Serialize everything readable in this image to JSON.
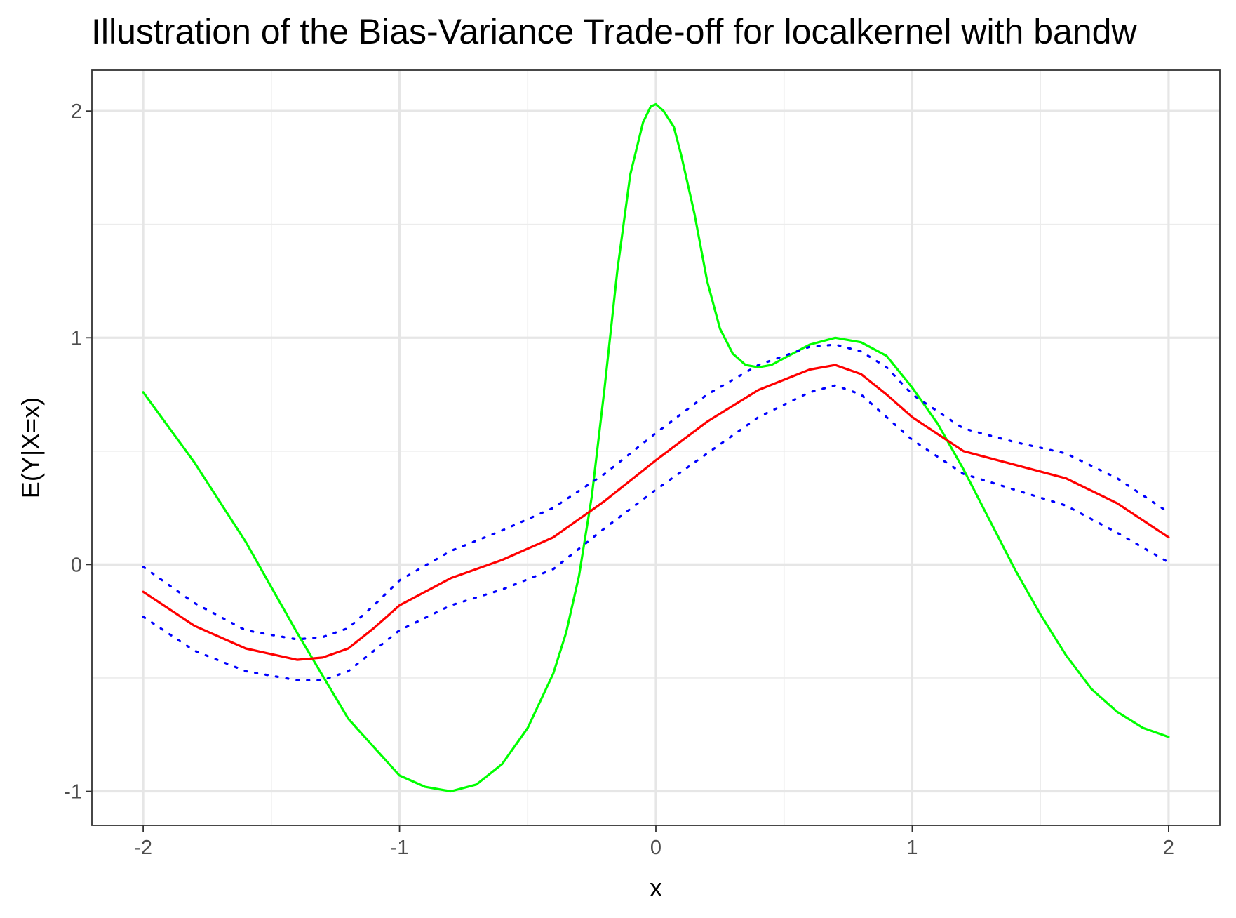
{
  "chart_data": {
    "type": "line",
    "title": "Illustration of the Bias-Variance Trade-off for localkernel  with bandw",
    "xlabel": "x",
    "ylabel": "E(Y|X=x)",
    "xlim": [
      -2.2,
      2.2
    ],
    "ylim": [
      -1.15,
      2.18
    ],
    "x_ticks": [
      -2,
      -1,
      0,
      1,
      2
    ],
    "y_ticks": [
      -1,
      0,
      1,
      2
    ],
    "grid": true,
    "legend": "none",
    "series": [
      {
        "color": "#00ff00",
        "dash": "solid",
        "x": [
          -2.0,
          -1.8,
          -1.6,
          -1.4,
          -1.2,
          -1.0,
          -0.9,
          -0.8,
          -0.7,
          -0.6,
          -0.5,
          -0.4,
          -0.35,
          -0.3,
          -0.25,
          -0.2,
          -0.15,
          -0.1,
          -0.05,
          -0.02,
          0.0,
          0.03,
          0.07,
          0.1,
          0.15,
          0.2,
          0.25,
          0.3,
          0.35,
          0.4,
          0.45,
          0.5,
          0.6,
          0.7,
          0.8,
          0.9,
          1.0,
          1.1,
          1.2,
          1.3,
          1.4,
          1.5,
          1.6,
          1.7,
          1.8,
          1.9,
          2.0
        ],
        "y": [
          0.76,
          0.45,
          0.1,
          -0.3,
          -0.68,
          -0.93,
          -0.98,
          -1.0,
          -0.97,
          -0.88,
          -0.72,
          -0.48,
          -0.3,
          -0.05,
          0.3,
          0.78,
          1.3,
          1.72,
          1.95,
          2.02,
          2.03,
          2.0,
          1.93,
          1.8,
          1.55,
          1.25,
          1.04,
          0.93,
          0.88,
          0.87,
          0.88,
          0.91,
          0.97,
          1.0,
          0.98,
          0.92,
          0.78,
          0.62,
          0.42,
          0.2,
          -0.02,
          -0.22,
          -0.4,
          -0.55,
          -0.65,
          -0.72,
          -0.76
        ]
      },
      {
        "color": "#ff0000",
        "dash": "solid",
        "x": [
          -2.0,
          -1.8,
          -1.6,
          -1.4,
          -1.3,
          -1.2,
          -1.1,
          -1.0,
          -0.8,
          -0.6,
          -0.4,
          -0.2,
          0.0,
          0.2,
          0.4,
          0.6,
          0.7,
          0.8,
          0.9,
          1.0,
          1.2,
          1.4,
          1.6,
          1.8,
          2.0
        ],
        "y": [
          -0.12,
          -0.27,
          -0.37,
          -0.42,
          -0.41,
          -0.37,
          -0.28,
          -0.18,
          -0.06,
          0.02,
          0.12,
          0.28,
          0.46,
          0.63,
          0.77,
          0.86,
          0.88,
          0.84,
          0.75,
          0.65,
          0.5,
          0.44,
          0.38,
          0.27,
          0.12
        ]
      },
      {
        "color": "#0000ff",
        "dash": "dotted",
        "x": [
          -2.0,
          -1.8,
          -1.6,
          -1.4,
          -1.3,
          -1.2,
          -1.1,
          -1.0,
          -0.8,
          -0.6,
          -0.4,
          -0.2,
          0.0,
          0.2,
          0.4,
          0.6,
          0.7,
          0.8,
          0.9,
          1.0,
          1.2,
          1.4,
          1.6,
          1.8,
          2.0
        ],
        "y": [
          -0.01,
          -0.17,
          -0.29,
          -0.33,
          -0.32,
          -0.28,
          -0.18,
          -0.07,
          0.06,
          0.15,
          0.25,
          0.4,
          0.58,
          0.75,
          0.88,
          0.96,
          0.97,
          0.94,
          0.87,
          0.75,
          0.6,
          0.54,
          0.49,
          0.38,
          0.23
        ]
      },
      {
        "color": "#0000ff",
        "dash": "dotted",
        "x": [
          -2.0,
          -1.8,
          -1.6,
          -1.4,
          -1.3,
          -1.2,
          -1.1,
          -1.0,
          -0.8,
          -0.6,
          -0.4,
          -0.2,
          0.0,
          0.2,
          0.4,
          0.6,
          0.7,
          0.8,
          0.9,
          1.0,
          1.2,
          1.4,
          1.6,
          1.8,
          2.0
        ],
        "y": [
          -0.23,
          -0.38,
          -0.47,
          -0.51,
          -0.51,
          -0.47,
          -0.38,
          -0.29,
          -0.18,
          -0.11,
          -0.02,
          0.16,
          0.33,
          0.49,
          0.65,
          0.76,
          0.79,
          0.75,
          0.65,
          0.55,
          0.4,
          0.33,
          0.26,
          0.14,
          0.01
        ]
      }
    ]
  }
}
